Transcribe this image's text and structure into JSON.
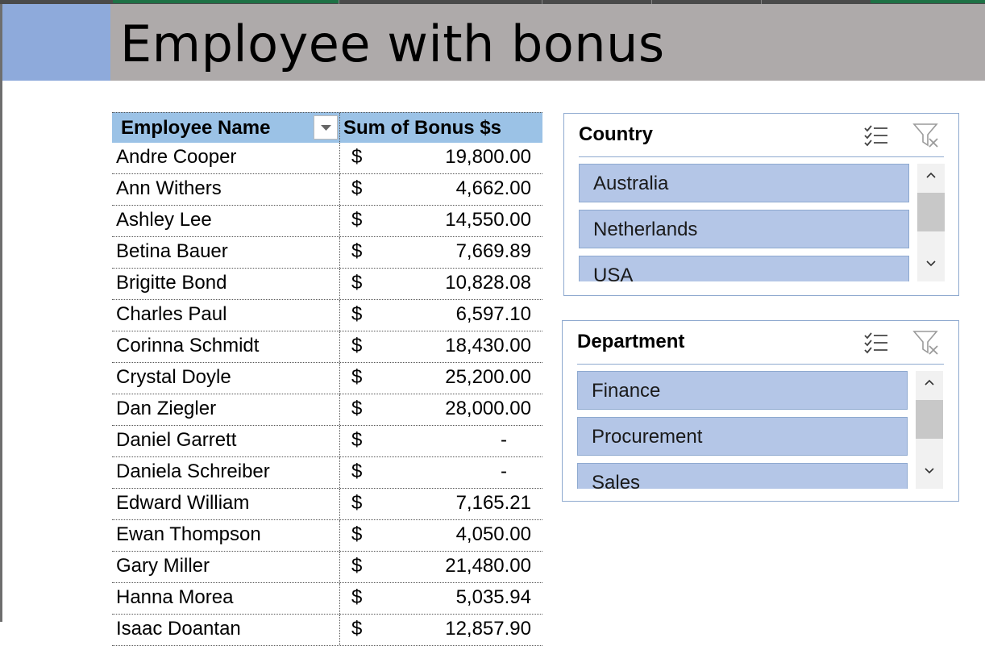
{
  "sheet": {
    "title": "Employee with bonus",
    "accent_colors": {
      "title_band": "#aeaaaa",
      "corner_block": "#8eaadb",
      "header_fill": "#9bc2e6",
      "slicer_item": "#b4c6e7"
    }
  },
  "pivot": {
    "col1_header": "Employee Name",
    "col2_header": "Sum of Bonus $s",
    "filter_icon": "dropdown-arrow-icon",
    "rows": [
      {
        "name": "Andre Cooper",
        "currency": "$",
        "amount": "19,800.00"
      },
      {
        "name": "Ann Withers",
        "currency": "$",
        "amount": "4,662.00"
      },
      {
        "name": "Ashley Lee",
        "currency": "$",
        "amount": "14,550.00"
      },
      {
        "name": "Betina Bauer",
        "currency": "$",
        "amount": "7,669.89"
      },
      {
        "name": "Brigitte Bond",
        "currency": "$",
        "amount": "10,828.08"
      },
      {
        "name": "Charles Paul",
        "currency": "$",
        "amount": "6,597.10"
      },
      {
        "name": "Corinna Schmidt",
        "currency": "$",
        "amount": "18,430.00"
      },
      {
        "name": "Crystal Doyle",
        "currency": "$",
        "amount": "25,200.00"
      },
      {
        "name": "Dan Ziegler",
        "currency": "$",
        "amount": "28,000.00"
      },
      {
        "name": "Daniel Garrett",
        "currency": "$",
        "amount": "-"
      },
      {
        "name": "Daniela Schreiber",
        "currency": "$",
        "amount": "-"
      },
      {
        "name": "Edward William",
        "currency": "$",
        "amount": "7,165.21"
      },
      {
        "name": "Ewan Thompson",
        "currency": "$",
        "amount": "4,050.00"
      },
      {
        "name": "Gary Miller",
        "currency": "$",
        "amount": "21,480.00"
      },
      {
        "name": "Hanna Morea",
        "currency": "$",
        "amount": "5,035.94"
      },
      {
        "name": "Isaac Doantan",
        "currency": "$",
        "amount": "12,857.90"
      }
    ]
  },
  "slicers": {
    "country": {
      "title": "Country",
      "items": [
        "Australia",
        "Netherlands",
        "USA"
      ],
      "icons": [
        "multi-select-icon",
        "clear-filter-icon"
      ]
    },
    "department": {
      "title": "Department",
      "items": [
        "Finance",
        "Procurement",
        "Sales"
      ],
      "icons": [
        "multi-select-icon",
        "clear-filter-icon"
      ]
    }
  }
}
